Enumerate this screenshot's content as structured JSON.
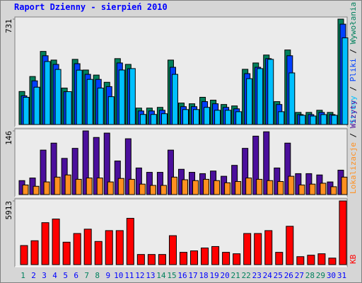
{
  "chart_data": [
    {
      "type": "bar",
      "title": "Raport Dzienny -  sierpień 2010",
      "legend_separator": " / ",
      "ylim": [
        0,
        731
      ],
      "yticks": [
        731
      ],
      "series": [
        {
          "name": "Wywołania",
          "color": "#00805c",
          "values": [
            229,
            333,
            507,
            447,
            253,
            452,
            378,
            343,
            293,
            457,
            417,
            114,
            114,
            119,
            447,
            149,
            144,
            189,
            169,
            139,
            129,
            383,
            427,
            482,
            159,
            517,
            84,
            84,
            99,
            84,
            731
          ]
        },
        {
          "name": "Pliki",
          "color": "#0040ff",
          "values": [
            199,
            303,
            477,
            417,
            228,
            422,
            348,
            313,
            263,
            427,
            387,
            94,
            94,
            99,
            397,
            124,
            124,
            159,
            144,
            119,
            109,
            353,
            397,
            457,
            139,
            477,
            69,
            69,
            84,
            69,
            696
          ]
        },
        {
          "name": "Strony",
          "color": "#00c0ff",
          "values": [
            189,
            259,
            437,
            382,
            228,
            377,
            313,
            253,
            193,
            378,
            388,
            70,
            70,
            75,
            348,
            104,
            104,
            119,
            99,
            99,
            89,
            318,
            388,
            452,
            89,
            358,
            64,
            59,
            69,
            64,
            601
          ]
        }
      ]
    },
    {
      "type": "bar",
      "legend_separator": " / ",
      "ylim": [
        0,
        146
      ],
      "yticks": [
        146
      ],
      "series": [
        {
          "name": "Wizyty",
          "color": "#4b0f9c",
          "values": [
            32,
            38,
            102,
            118,
            83,
            106,
            146,
            131,
            141,
            77,
            128,
            61,
            51,
            51,
            102,
            58,
            51,
            48,
            54,
            42,
            67,
            106,
            134,
            144,
            61,
            118,
            48,
            48,
            45,
            29,
            56
          ]
        },
        {
          "name": "Lokalizacje",
          "color": "#ff9020",
          "values": [
            22,
            19,
            29,
            40,
            45,
            35,
            38,
            38,
            29,
            37,
            35,
            24,
            21,
            21,
            40,
            34,
            32,
            35,
            32,
            27,
            30,
            38,
            35,
            32,
            30,
            42,
            22,
            24,
            26,
            18,
            40
          ]
        }
      ]
    },
    {
      "type": "bar",
      "ylim": [
        0,
        5913
      ],
      "yticks": [
        5913
      ],
      "categories": [
        "1",
        "2",
        "3",
        "4",
        "5",
        "6",
        "7",
        "8",
        "9",
        "10",
        "11",
        "12",
        "13",
        "14",
        "15",
        "16",
        "17",
        "18",
        "19",
        "20",
        "21",
        "22",
        "23",
        "24",
        "25",
        "26",
        "27",
        "28",
        "29",
        "30",
        "31"
      ],
      "category_colors": [
        "#00805c",
        "#0000ff",
        "#0000ff",
        "#0000ff",
        "#0000ff",
        "#0000ff",
        "#00805c",
        "#00805c",
        "#0000ff",
        "#0000ff",
        "#0000ff",
        "#0000ff",
        "#0000ff",
        "#00805c",
        "#00805c",
        "#0000ff",
        "#0000ff",
        "#0000ff",
        "#0000ff",
        "#0000ff",
        "#00805c",
        "#00805c",
        "#0000ff",
        "#0000ff",
        "#0000ff",
        "#0000ff",
        "#0000ff",
        "#00805c",
        "#00805c",
        "#0000ff",
        "#0000ff"
      ],
      "series": [
        {
          "name": "KB",
          "color": "#ff0000",
          "values": [
            1770,
            2217,
            3897,
            4233,
            2083,
            2889,
            3292,
            2150,
            3158,
            3158,
            4300,
            941,
            941,
            941,
            2688,
            1142,
            1277,
            1546,
            1680,
            1142,
            1008,
            2889,
            2889,
            3158,
            1142,
            3561,
            739,
            874,
            1008,
            605,
            5913
          ]
        }
      ]
    }
  ]
}
